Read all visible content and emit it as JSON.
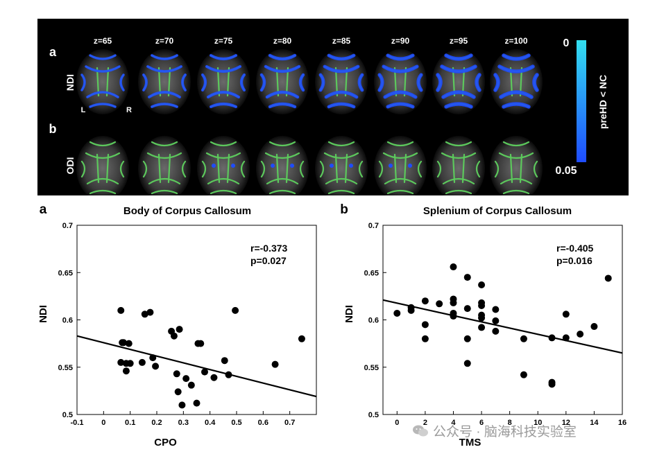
{
  "brain_figure": {
    "row_a_letter": "a",
    "row_b_letter": "b",
    "row_a_label": "NDI",
    "row_b_label": "ODI",
    "slice_labels": [
      "z=65",
      "z=70",
      "z=75",
      "z=80",
      "z=85",
      "z=90",
      "z=95",
      "z=100"
    ],
    "orientation_left": "L",
    "orientation_right": "R",
    "colorbar_top": "0",
    "colorbar_bottom": "0.05",
    "colorbar_label": "preHD < NC",
    "colors": {
      "background": "#000000",
      "skeleton": "#5cc85c",
      "effect": "#1f4cff",
      "effect_light": "#33e0f0"
    }
  },
  "chart_data": [
    {
      "type": "scatter",
      "panel_letter": "a",
      "title": "Body of Corpus Callosum",
      "xlabel": "CPO",
      "ylabel": "NDI",
      "xlim": [
        -0.1,
        0.8
      ],
      "ylim": [
        0.5,
        0.7
      ],
      "xticks": [
        "-0.1",
        "0",
        "0.1",
        "0.2",
        "0.3",
        "0.4",
        "0.5",
        "0.6",
        "0.7"
      ],
      "yticks": [
        "0.5",
        "0.55",
        "0.6",
        "0.65",
        "0.7"
      ],
      "stats_r": "r=-0.373",
      "stats_p": "p=0.027",
      "points": [
        [
          0.065,
          0.61
        ],
        [
          0.065,
          0.555
        ],
        [
          0.07,
          0.576
        ],
        [
          0.075,
          0.576
        ],
        [
          0.085,
          0.554
        ],
        [
          0.085,
          0.546
        ],
        [
          0.095,
          0.575
        ],
        [
          0.1,
          0.554
        ],
        [
          0.145,
          0.555
        ],
        [
          0.155,
          0.606
        ],
        [
          0.175,
          0.608
        ],
        [
          0.185,
          0.56
        ],
        [
          0.195,
          0.551
        ],
        [
          0.255,
          0.588
        ],
        [
          0.265,
          0.583
        ],
        [
          0.275,
          0.543
        ],
        [
          0.28,
          0.524
        ],
        [
          0.285,
          0.59
        ],
        [
          0.295,
          0.51
        ],
        [
          0.31,
          0.538
        ],
        [
          0.33,
          0.531
        ],
        [
          0.35,
          0.512
        ],
        [
          0.355,
          0.575
        ],
        [
          0.365,
          0.575
        ],
        [
          0.38,
          0.545
        ],
        [
          0.415,
          0.539
        ],
        [
          0.455,
          0.557
        ],
        [
          0.47,
          0.542
        ],
        [
          0.495,
          0.61
        ],
        [
          0.645,
          0.553
        ],
        [
          0.745,
          0.58
        ]
      ],
      "fit": [
        [
          -0.1,
          0.583
        ],
        [
          0.8,
          0.519
        ]
      ]
    },
    {
      "type": "scatter",
      "panel_letter": "b",
      "title": "Splenium of Corpus Callosum",
      "xlabel": "TMS",
      "ylabel": "NDI",
      "xlim": [
        -1,
        16
      ],
      "ylim": [
        0.5,
        0.7
      ],
      "xticks": [
        "0",
        "2",
        "4",
        "6",
        "8",
        "10",
        "12",
        "14",
        "16"
      ],
      "yticks": [
        "0.5",
        "0.55",
        "0.6",
        "0.65",
        "0.7"
      ],
      "stats_r": "r=-0.405",
      "stats_p": "p=0.016",
      "points": [
        [
          0,
          0.607
        ],
        [
          1,
          0.61
        ],
        [
          1,
          0.613
        ],
        [
          2,
          0.595
        ],
        [
          2,
          0.58
        ],
        [
          2,
          0.62
        ],
        [
          3,
          0.617
        ],
        [
          4,
          0.656
        ],
        [
          4,
          0.622
        ],
        [
          4,
          0.618
        ],
        [
          4,
          0.607
        ],
        [
          4,
          0.604
        ],
        [
          5,
          0.645
        ],
        [
          5,
          0.612
        ],
        [
          5,
          0.58
        ],
        [
          5,
          0.554
        ],
        [
          6,
          0.637
        ],
        [
          6,
          0.618
        ],
        [
          6,
          0.615
        ],
        [
          6,
          0.605
        ],
        [
          6,
          0.602
        ],
        [
          6,
          0.592
        ],
        [
          7,
          0.611
        ],
        [
          7,
          0.599
        ],
        [
          7,
          0.588
        ],
        [
          9,
          0.58
        ],
        [
          9,
          0.542
        ],
        [
          11,
          0.581
        ],
        [
          11,
          0.534
        ],
        [
          11,
          0.532
        ],
        [
          12,
          0.606
        ],
        [
          12,
          0.581
        ],
        [
          13,
          0.585
        ],
        [
          14,
          0.593
        ],
        [
          15,
          0.644
        ]
      ],
      "fit": [
        [
          -1,
          0.621
        ],
        [
          16,
          0.565
        ]
      ]
    }
  ],
  "watermark": {
    "text": "公众号 · 脑海科技实验室"
  }
}
